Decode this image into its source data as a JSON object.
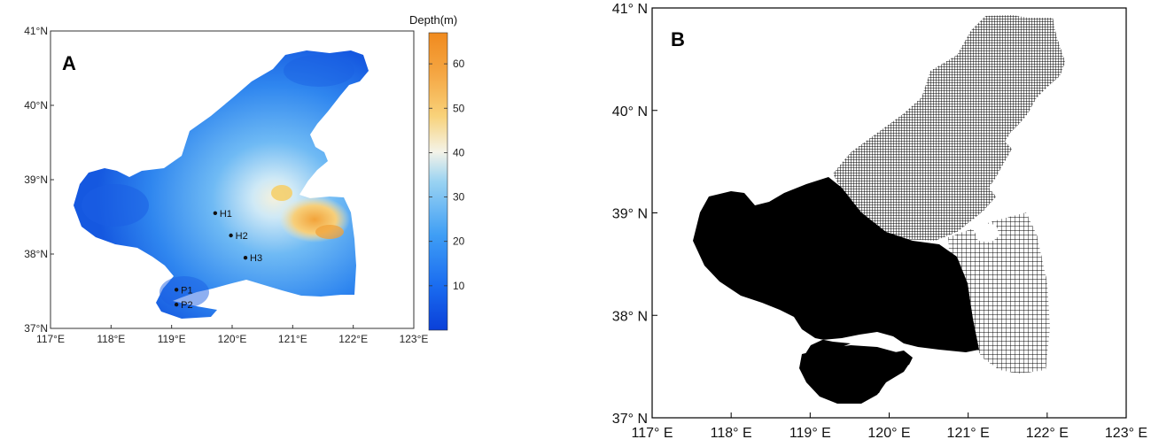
{
  "panel_a": {
    "label": "A",
    "colorbar": {
      "title": "Depth(m)",
      "ticks": [
        "10",
        "20",
        "30",
        "40",
        "50",
        "60"
      ],
      "colors": [
        "#0a3fd8",
        "#1a6cf0",
        "#3f9ef5",
        "#9ad3f2",
        "#f4f3e8",
        "#f8d27a",
        "#f5a744",
        "#f08a1e"
      ]
    },
    "x_ticks": [
      "117°E",
      "118°E",
      "119°E",
      "120°E",
      "121°E",
      "122°E",
      "123°E"
    ],
    "y_ticks": [
      "37°N",
      "38°N",
      "39°N",
      "40°N",
      "41°N"
    ],
    "stations": [
      {
        "name": "H1",
        "lon": 119.72,
        "lat": 38.55
      },
      {
        "name": "H2",
        "lon": 119.98,
        "lat": 38.25
      },
      {
        "name": "H3",
        "lon": 120.22,
        "lat": 37.95
      },
      {
        "name": "P1",
        "lon": 119.08,
        "lat": 37.52
      },
      {
        "name": "P2",
        "lon": 119.08,
        "lat": 37.32
      }
    ]
  },
  "panel_b": {
    "label": "B",
    "x_ticks": [
      "117° E",
      "118° E",
      "119° E",
      "120° E",
      "121° E",
      "122° E",
      "123° E"
    ],
    "y_ticks": [
      "37° N",
      "38° N",
      "39° N",
      "40° N",
      "41° N"
    ]
  }
}
